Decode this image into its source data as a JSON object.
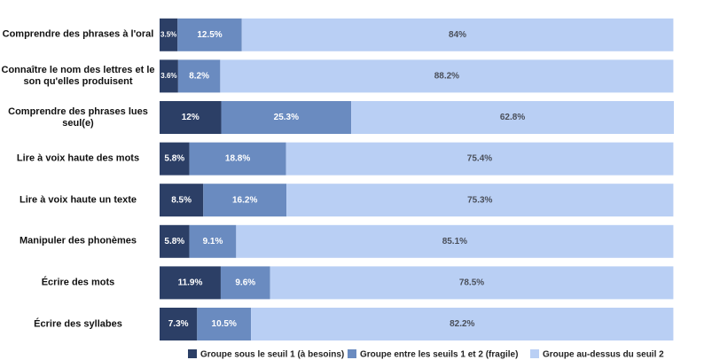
{
  "chart_data": {
    "type": "stacked-bar-horizontal",
    "categories": [
      "Comprendre des phrases à l'oral",
      "Connaître le nom des lettres et le son qu'elles produisent",
      "Comprendre des phrases lues seul(e)",
      "Lire à voix haute des mots",
      "Lire à voix haute un texte",
      "Manipuler des phonèmes",
      "Écrire des mots",
      "Écrire des syllabes"
    ],
    "series": [
      {
        "name": "Groupe sous le seuil 1 (à besoins)",
        "color": "#2c3f66",
        "label_color": "#ffffff",
        "values": [
          3.5,
          3.6,
          12,
          5.8,
          8.5,
          5.8,
          11.9,
          7.3
        ],
        "value_labels": [
          "3.5%",
          "3.6%",
          "12%",
          "5.8%",
          "8.5%",
          "5.8%",
          "11.9%",
          "7.3%"
        ]
      },
      {
        "name": "Groupe entre les seuils 1 et 2 (fragile)",
        "color": "#6a8bc0",
        "label_color": "#ffffff",
        "values": [
          12.5,
          8.2,
          25.3,
          18.8,
          16.2,
          9.1,
          9.6,
          10.5
        ],
        "value_labels": [
          "12.5%",
          "8.2%",
          "25.3%",
          "18.8%",
          "16.2%",
          "9.1%",
          "9.6%",
          "10.5%"
        ]
      },
      {
        "name": "Groupe au-dessus du seuil 2",
        "color": "#b9cff4",
        "label_color": "#4a4f5a",
        "values": [
          84,
          88.2,
          62.8,
          75.4,
          75.3,
          85.1,
          78.5,
          82.2
        ],
        "value_labels": [
          "84%",
          "88.2%",
          "62.8%",
          "75.4%",
          "75.3%",
          "85.1%",
          "78.5%",
          "82.2%"
        ]
      }
    ],
    "legend": "bottom"
  }
}
